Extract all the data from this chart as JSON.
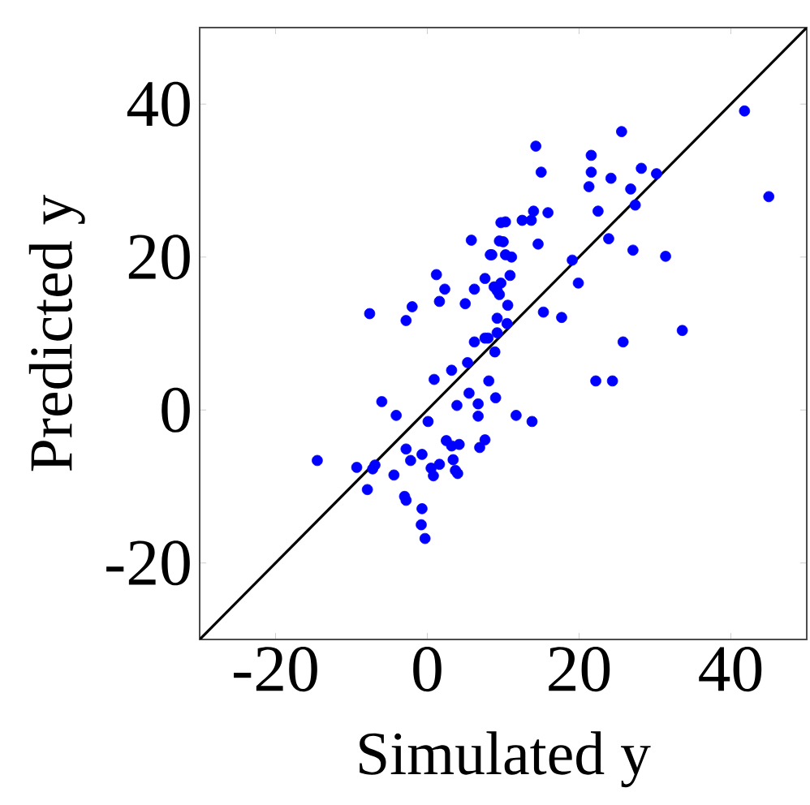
{
  "chart_data": {
    "type": "scatter",
    "xlabel": "Simulated y",
    "ylabel": "Predicted y",
    "marker": "circle",
    "xlim": [
      -30,
      50
    ],
    "ylim": [
      -30,
      50
    ],
    "xticks": [
      -20,
      0,
      20,
      40
    ],
    "yticks": [
      -20,
      0,
      20,
      40
    ],
    "series": [
      {
        "type": "scatter",
        "color": "#0000ff",
        "x": [
          5.8,
          8.3,
          1.2,
          2.3,
          6.2,
          7.6,
          8.8,
          9.5,
          1.6,
          5.0,
          -2.0,
          -2.8,
          -7.6,
          9.2,
          6.2,
          7.6,
          8.9,
          5.3,
          3.2,
          9.7,
          9.5,
          41.8,
          45.0,
          25.6,
          14.3,
          15.0,
          21.6,
          21.6,
          21.3,
          24.2,
          28.2,
          30.2,
          26.8,
          27.4,
          22.5,
          23.9,
          27.1,
          31.4,
          15.9,
          14.0,
          13.7,
          12.5,
          10.3,
          14.6,
          10.0,
          8.5,
          10.3,
          11.1,
          19.1,
          19.9,
          10.9,
          9.7,
          9.2,
          10.6,
          15.3,
          17.7,
          10.5,
          9.2,
          8.0,
          33.6,
          25.8,
          0.9,
          8.1,
          9.0,
          5.5,
          6.7,
          3.9,
          -6.0,
          -4.1,
          0.1,
          6.7,
          7.6,
          6.9,
          2.5,
          4.2,
          3.2,
          -2.8,
          -0.7,
          -2.2,
          3.4,
          1.6,
          0.5,
          3.7,
          0.8,
          4.0,
          -14.5,
          -9.3,
          -6.9,
          -7.2,
          -4.4,
          -7.9,
          -3.0,
          -2.8,
          -0.7,
          -0.8,
          -0.3,
          22.2,
          24.4,
          11.7,
          13.8
        ],
        "values": [
          22.2,
          20.3,
          17.7,
          15.8,
          15.8,
          17.2,
          16.1,
          15.1,
          14.2,
          13.9,
          13.5,
          11.7,
          12.6,
          12.0,
          8.9,
          9.4,
          7.6,
          6.2,
          5.2,
          24.5,
          22.1,
          39.1,
          27.9,
          36.4,
          34.5,
          31.1,
          33.3,
          31.1,
          29.2,
          30.3,
          31.6,
          30.9,
          28.9,
          26.8,
          26.0,
          22.4,
          20.9,
          20.1,
          25.8,
          26.0,
          24.8,
          24.8,
          24.6,
          21.7,
          22.0,
          20.3,
          20.3,
          20.0,
          19.6,
          16.6,
          17.6,
          16.6,
          15.6,
          13.7,
          12.8,
          12.1,
          11.3,
          10.1,
          9.4,
          10.4,
          8.9,
          4.0,
          3.8,
          1.6,
          2.2,
          0.8,
          0.6,
          1.1,
          -0.7,
          -1.5,
          -0.8,
          -3.9,
          -4.9,
          -4.0,
          -4.5,
          -4.7,
          -5.1,
          -5.8,
          -6.6,
          -6.5,
          -7.1,
          -7.6,
          -7.9,
          -8.6,
          -8.3,
          -6.6,
          -7.5,
          -7.2,
          -7.7,
          -8.5,
          -10.4,
          -11.3,
          -11.8,
          -12.9,
          -15.0,
          -16.8,
          3.8,
          3.8,
          -0.7,
          -1.5
        ]
      },
      {
        "type": "line",
        "color": "#000000",
        "marker": "none",
        "line_style": "solid",
        "x": [
          -30,
          50
        ],
        "values": [
          -30,
          50
        ]
      }
    ]
  }
}
